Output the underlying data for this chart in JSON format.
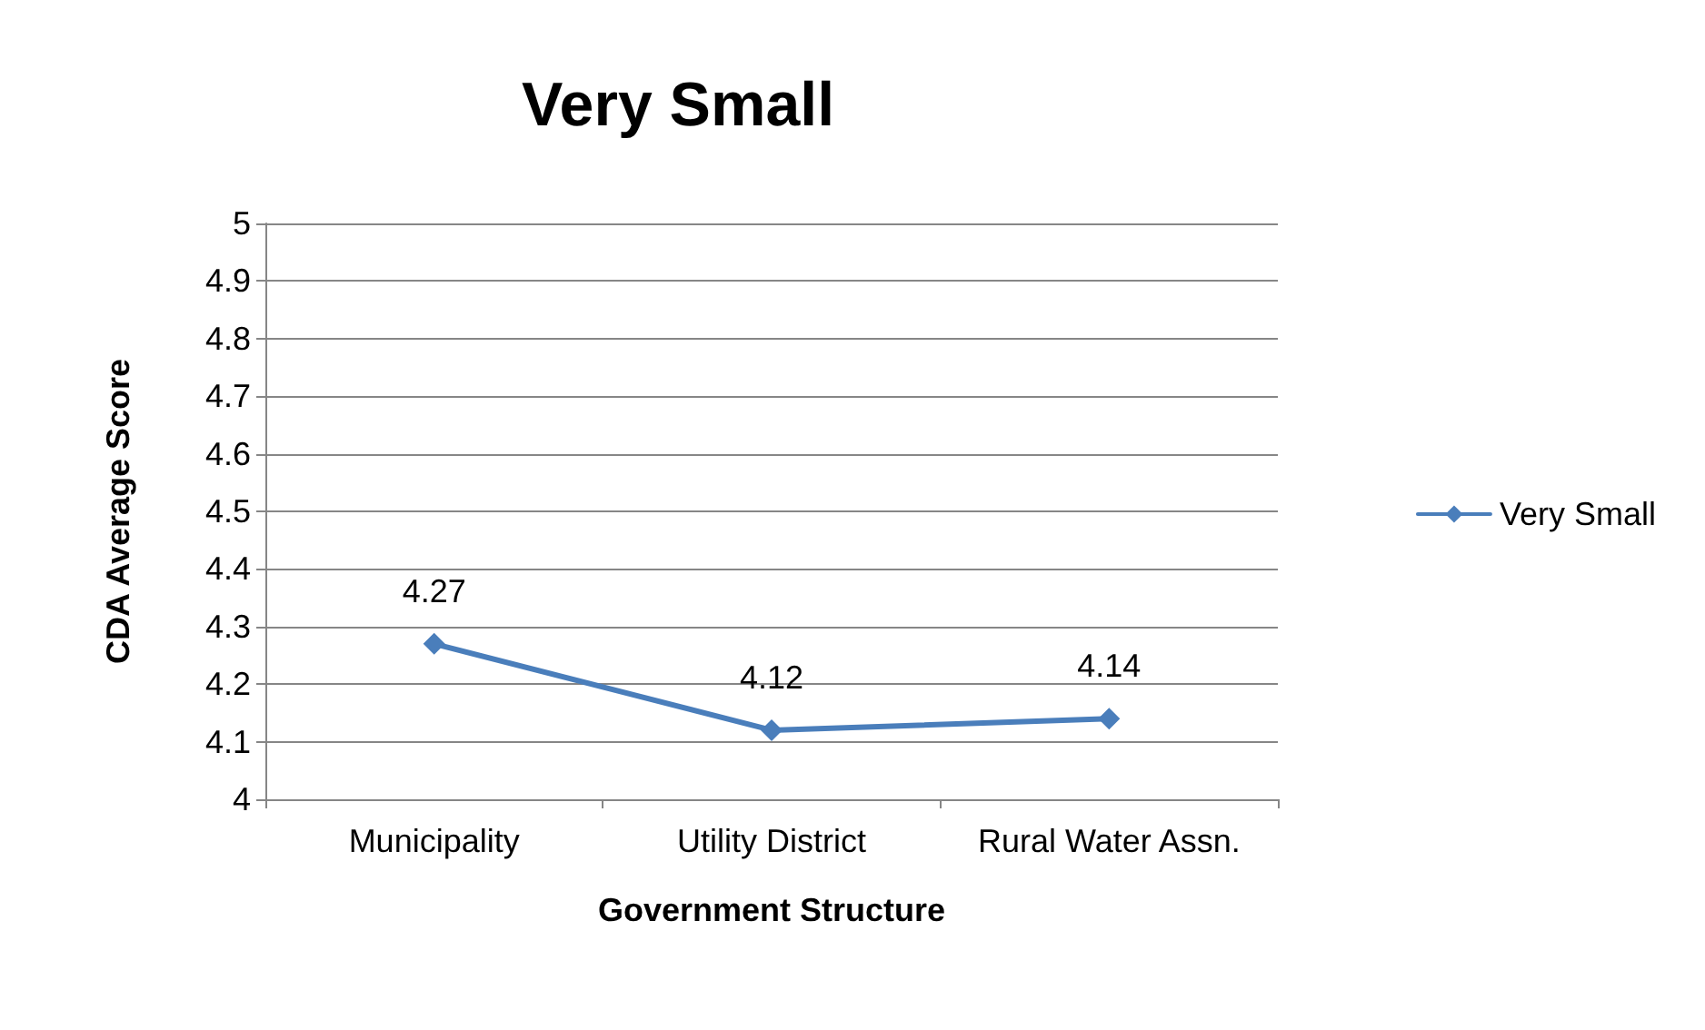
{
  "chart_data": {
    "type": "line",
    "title": "Very Small",
    "xlabel": "Government Structure",
    "ylabel": "CDA Average Score",
    "categories": [
      "Municipality",
      "Utility District",
      "Rural Water Assn."
    ],
    "series": [
      {
        "name": "Very Small",
        "color": "#4a7ebb",
        "values": [
          4.27,
          4.12,
          4.14
        ]
      }
    ],
    "ylim": [
      4,
      5
    ],
    "yticks": [
      4,
      4.1,
      4.2,
      4.3,
      4.4,
      4.5,
      4.6,
      4.7,
      4.8,
      4.9,
      5
    ],
    "grid": "y",
    "legend": "right",
    "marker": "diamond",
    "line_style": "solid",
    "data_labels": true
  }
}
